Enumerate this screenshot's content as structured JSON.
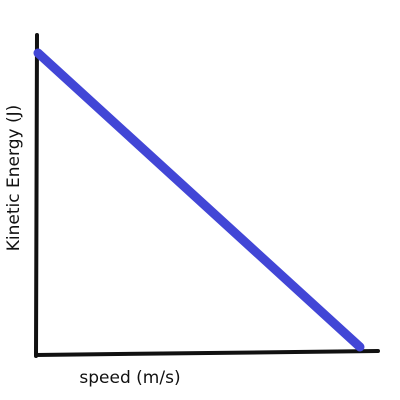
{
  "chart_data": {
    "type": "line",
    "title": "",
    "xlabel": "speed (m/s)",
    "ylabel": "Kinetic Energy (J)",
    "grid": false,
    "tick_labels": false,
    "x": [
      0,
      1
    ],
    "series": [
      {
        "values": [
          1,
          0
        ]
      }
    ],
    "colors": {
      "line": "#4246d6",
      "axes": "#111111"
    }
  }
}
